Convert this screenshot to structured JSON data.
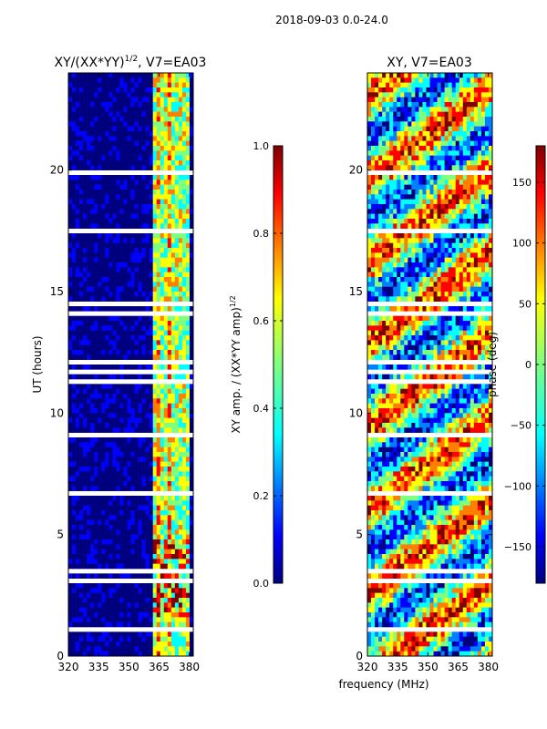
{
  "suptitle": "2018-09-03 0.0-24.0",
  "xlabel_shared": "frequency (MHz)",
  "colors": {
    "jet": [
      "#00007f",
      "#0000ff",
      "#007fff",
      "#00ffff",
      "#7fff7f",
      "#ffff00",
      "#ff7f00",
      "#ff0000",
      "#7f0000"
    ]
  },
  "chart_data": [
    {
      "type": "heatmap",
      "title_prefix": "XY/(XX*YY)",
      "title_exponent": "1/2",
      "title_suffix": ", V7=EA03",
      "xlabel": "",
      "ylabel": "UT (hours)",
      "xlim": [
        320,
        382
      ],
      "ylim": [
        0,
        24
      ],
      "xticks": [
        320,
        335,
        350,
        365,
        380
      ],
      "yticks": [
        0,
        5,
        10,
        15,
        20
      ],
      "colorbar": {
        "label": "XY amp. / (XX*YY amp)",
        "label_exponent": "1/2",
        "range": [
          0.0,
          1.0
        ],
        "ticks": [
          "0.0",
          "0.2",
          "0.4",
          "0.6",
          "0.8",
          "1.0"
        ]
      }
    },
    {
      "type": "heatmap",
      "title": "XY, V7=EA03",
      "xlabel": "frequency (MHz)",
      "ylabel": "",
      "xlim": [
        320,
        382
      ],
      "ylim": [
        0,
        24
      ],
      "xticks": [
        320,
        335,
        350,
        365,
        380
      ],
      "yticks": [
        0,
        5,
        10,
        15,
        20
      ],
      "colorbar": {
        "label": "phase (deg)",
        "range": [
          -180,
          180
        ],
        "ticks": [
          "−150",
          "−100",
          "−50",
          "0",
          "50",
          "100",
          "150"
        ]
      }
    }
  ]
}
